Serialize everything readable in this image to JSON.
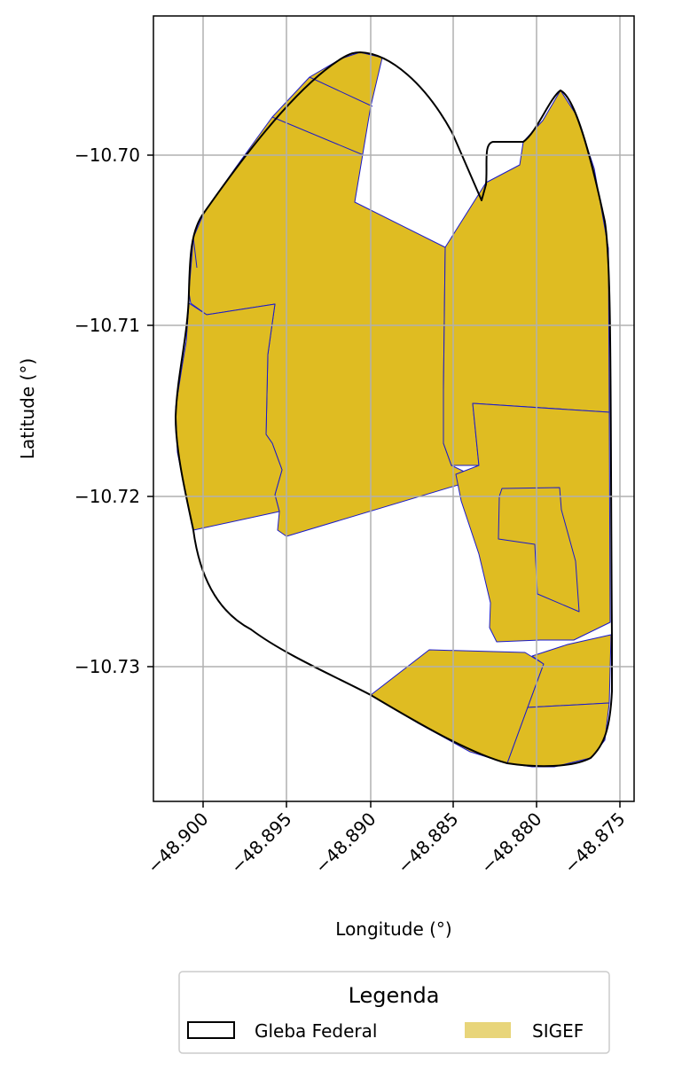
{
  "map": {
    "xlabel": "Longitude (°)",
    "ylabel": "Latitude (°)",
    "x_ticks": [
      "−48.900",
      "−48.895",
      "−48.890",
      "−48.885",
      "−48.880",
      "−48.875"
    ],
    "y_ticks": [
      "−10.70",
      "−10.71",
      "−10.72",
      "−10.73"
    ],
    "grid": true
  },
  "legend": {
    "title": "Legenda",
    "items": [
      {
        "label": "Gleba Federal",
        "style": "outline",
        "color": "#000000"
      },
      {
        "label": "SIGEF",
        "style": "fill",
        "color": "#e8d57a"
      }
    ]
  },
  "colors": {
    "sigef_fill": "#dfbc22",
    "sigef_edge": "#1a1acc",
    "gleba_edge": "#000000",
    "grid": "#b0b0b0"
  }
}
